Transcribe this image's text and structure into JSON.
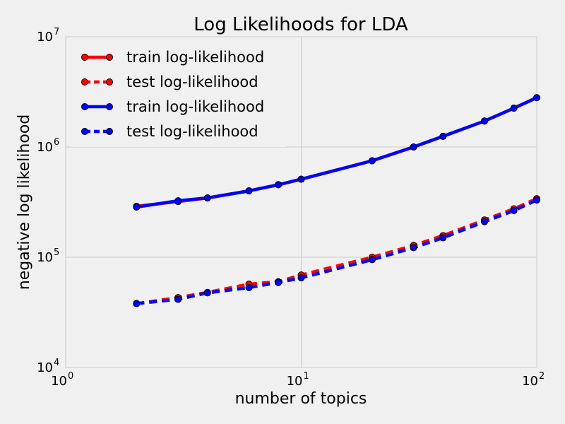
{
  "chart_data": {
    "type": "line",
    "title": "Log Likelihoods for LDA",
    "xlabel": "number of topics",
    "ylabel": "negative log likelihood",
    "xscale": "log",
    "yscale": "log",
    "xlim": [
      1,
      100
    ],
    "ylim": [
      10000,
      10000000
    ],
    "grid": true,
    "legend_position": "top-left",
    "x_ticks": [
      {
        "value": 1,
        "base": "10",
        "exp": "0"
      },
      {
        "value": 10,
        "base": "10",
        "exp": "1"
      },
      {
        "value": 100,
        "base": "10",
        "exp": "2"
      }
    ],
    "y_ticks": [
      {
        "value": 10000,
        "base": "10",
        "exp": "4"
      },
      {
        "value": 100000,
        "base": "10",
        "exp": "5"
      },
      {
        "value": 1000000,
        "base": "10",
        "exp": "6"
      },
      {
        "value": 10000000,
        "base": "10",
        "exp": "7"
      }
    ],
    "x": [
      2,
      3,
      4,
      6,
      8,
      10,
      20,
      30,
      40,
      60,
      80,
      100
    ],
    "series": [
      {
        "name": "train log-likelihood",
        "color": "#ff0000",
        "style": "solid",
        "values": [
          290000,
          320000,
          345000,
          400000,
          455000,
          510000,
          750000,
          1000000,
          1250000,
          1720000,
          2250000,
          2800000
        ]
      },
      {
        "name": "test log-likelihood",
        "color": "#ff0000",
        "style": "dashed",
        "values": [
          38000,
          43000,
          48000,
          57000,
          60000,
          69000,
          100000,
          128000,
          157000,
          218000,
          275000,
          340000
        ]
      },
      {
        "name": "train log-likelihood",
        "color": "#0000ff",
        "style": "solid",
        "values": [
          285000,
          325000,
          345000,
          400000,
          455000,
          510000,
          750000,
          1000000,
          1250000,
          1720000,
          2250000,
          2800000
        ]
      },
      {
        "name": "test log-likelihood",
        "color": "#0000ff",
        "style": "dashed",
        "values": [
          38000,
          41500,
          47500,
          53000,
          59000,
          65000,
          95000,
          122000,
          150000,
          210000,
          265000,
          330000
        ]
      }
    ]
  }
}
